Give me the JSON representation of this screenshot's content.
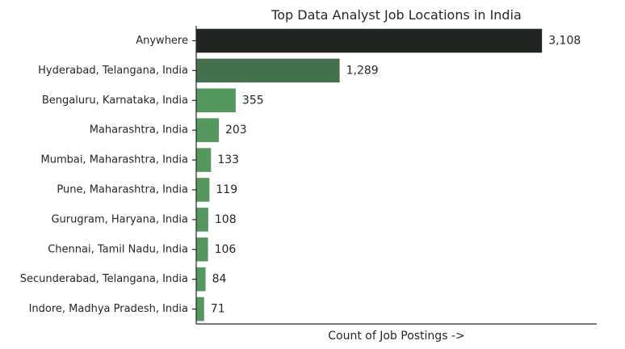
{
  "chart_data": {
    "type": "bar",
    "orientation": "horizontal",
    "title": "Top Data Analyst Job Locations in India",
    "xlabel": "Count of Job Postings ->",
    "ylabel": "",
    "xlim": [
      0,
      3600
    ],
    "categories": [
      "Anywhere",
      "Hyderabad, Telangana, India",
      "Bengaluru, Karnataka, India",
      "Maharashtra, India",
      "Mumbai, Maharashtra, India",
      "Pune, Maharashtra, India",
      "Gurugram, Haryana, India",
      "Chennai, Tamil Nadu, India",
      "Secunderabad, Telangana, India",
      "Indore, Madhya Pradesh, India"
    ],
    "values": [
      3108,
      1289,
      355,
      203,
      133,
      119,
      108,
      106,
      84,
      71
    ],
    "value_labels": [
      "3,108",
      "1,289",
      "355",
      "203",
      "133",
      "119",
      "108",
      "106",
      "84",
      "71"
    ],
    "colors": [
      "#212521",
      "#44704d",
      "#54975f",
      "#54975f",
      "#54975f",
      "#54975f",
      "#54975f",
      "#54975f",
      "#54975f",
      "#54975f"
    ],
    "grid": false,
    "legend": "none",
    "x_ticks_visible": false
  }
}
